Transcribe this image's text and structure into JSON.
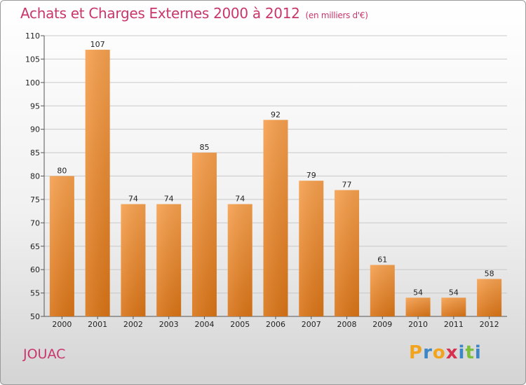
{
  "title": "Achats et Charges Externes 2000 à 2012",
  "subtitle": "(en milliers d'€)",
  "commune": "JOUAC",
  "logo": {
    "text": "Proxiti",
    "letters": [
      "P",
      "r",
      "o",
      "x",
      "i",
      "t",
      "i"
    ],
    "colors": [
      "#f2a41f",
      "#3b86c6",
      "#f2a41f",
      "#d8304f",
      "#3b86c6",
      "#7bbf3a",
      "#3b86c6"
    ]
  },
  "chart_data": {
    "type": "bar",
    "categories": [
      "2000",
      "2001",
      "2002",
      "2003",
      "2004",
      "2005",
      "2006",
      "2007",
      "2008",
      "2009",
      "2010",
      "2011",
      "2012"
    ],
    "values": [
      80,
      107,
      74,
      74,
      85,
      74,
      92,
      79,
      77,
      61,
      54,
      54,
      58
    ],
    "ylim": [
      50,
      110
    ],
    "yticks": [
      50,
      55,
      60,
      65,
      70,
      75,
      80,
      85,
      90,
      95,
      100,
      105,
      110
    ],
    "grid": true,
    "bar_color": "#f0963c"
  }
}
